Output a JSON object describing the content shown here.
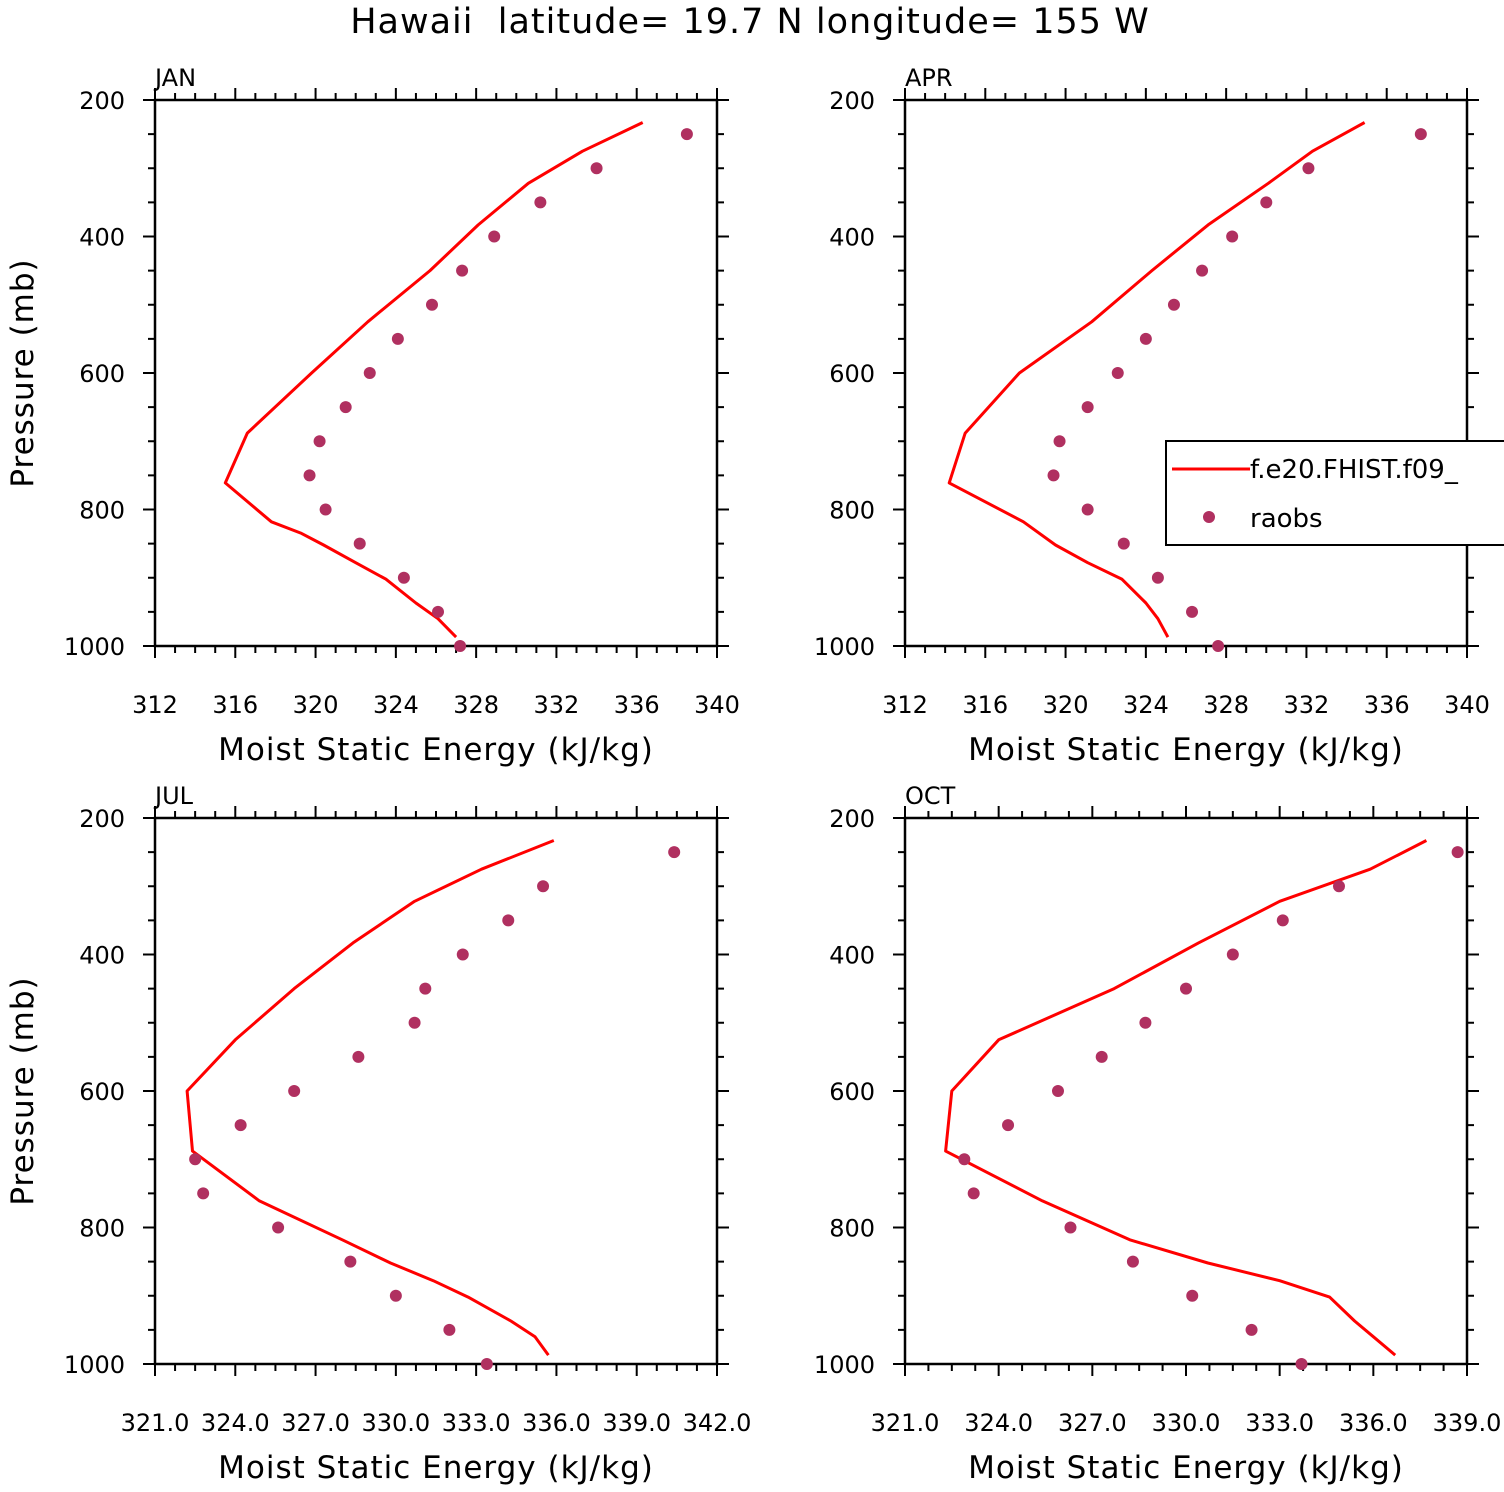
{
  "figure_title": "Hawaii  latitude= 19.7 N longitude= 155 W",
  "colors": {
    "model_line": "#ff0000",
    "raobs_marker": "#b03060",
    "axis": "#000000"
  },
  "chart_data": [
    {
      "type": "line",
      "title": "JAN",
      "xlabel": "Moist Static Energy (kJ/kg)",
      "ylabel": "Pressure (mb)",
      "xlim": [
        312,
        340
      ],
      "ylim": [
        1000,
        200
      ],
      "y_inverted": true,
      "xtick_values": [
        312,
        316,
        320,
        324,
        328,
        332,
        336,
        340
      ],
      "xtick_labels": [
        "312",
        "316",
        "320",
        "324",
        "328",
        "332",
        "336",
        "340"
      ],
      "ytick_values": [
        200,
        400,
        600,
        800,
        1000
      ],
      "ytick_labels": [
        "200",
        "400",
        "600",
        "800",
        "1000"
      ],
      "series": [
        {
          "name": "f.e20.FHIST.f09_",
          "kind": "line",
          "x": [
            327.0,
            326.1,
            325.0,
            323.5,
            322.0,
            320.4,
            319.3,
            317.8,
            315.5,
            316.6,
            319.8,
            322.6,
            325.7,
            328.1,
            330.6,
            333.3,
            336.3
          ],
          "y": [
            987,
            960,
            937,
            902,
            878,
            852,
            835,
            818,
            761,
            688,
            600,
            525,
            450,
            383,
            322,
            275,
            233
          ]
        },
        {
          "name": "raobs",
          "kind": "scatter",
          "x": [
            327.2,
            326.1,
            324.4,
            322.2,
            320.5,
            319.7,
            320.2,
            321.5,
            322.7,
            324.1,
            325.8,
            327.3,
            328.9,
            331.2,
            334.0,
            338.5
          ],
          "y": [
            1000,
            950,
            900,
            850,
            800,
            750,
            700,
            650,
            600,
            550,
            500,
            450,
            400,
            350,
            300,
            250
          ]
        }
      ]
    },
    {
      "type": "line",
      "title": "APR",
      "xlabel": "Moist Static Energy (kJ/kg)",
      "ylabel": "",
      "xlim": [
        312,
        340
      ],
      "ylim": [
        1000,
        200
      ],
      "y_inverted": true,
      "xtick_values": [
        312,
        316,
        320,
        324,
        328,
        332,
        336,
        340
      ],
      "xtick_labels": [
        "312",
        "316",
        "320",
        "324",
        "328",
        "332",
        "336",
        "340"
      ],
      "ytick_values": [
        200,
        400,
        600,
        800,
        1000
      ],
      "ytick_labels": [
        "200",
        "400",
        "600",
        "800",
        "1000"
      ],
      "legend": {
        "placement": "right",
        "entries": [
          "f.e20.FHIST.f09_",
          "raobs"
        ]
      },
      "series": [
        {
          "name": "f.e20.FHIST.f09_",
          "kind": "line",
          "x": [
            325.1,
            324.6,
            324.0,
            322.8,
            321.1,
            319.5,
            317.9,
            314.2,
            315.0,
            317.7,
            321.3,
            324.3,
            327.1,
            330.1,
            332.3,
            334.9
          ],
          "y": [
            987,
            960,
            937,
            902,
            878,
            852,
            818,
            761,
            688,
            600,
            525,
            450,
            383,
            322,
            275,
            233
          ]
        },
        {
          "name": "raobs",
          "kind": "scatter",
          "x": [
            327.6,
            326.3,
            324.6,
            322.9,
            321.1,
            319.4,
            319.7,
            321.1,
            322.6,
            324.0,
            325.4,
            326.8,
            328.3,
            330.0,
            332.1,
            337.7
          ],
          "y": [
            1000,
            950,
            900,
            850,
            800,
            750,
            700,
            650,
            600,
            550,
            500,
            450,
            400,
            350,
            300,
            250
          ]
        }
      ]
    },
    {
      "type": "line",
      "title": "JUL",
      "xlabel": "Moist Static Energy (kJ/kg)",
      "ylabel": "Pressure (mb)",
      "xlim": [
        321.0,
        342.0
      ],
      "ylim": [
        1000,
        200
      ],
      "y_inverted": true,
      "xtick_values": [
        321.0,
        324.0,
        327.0,
        330.0,
        333.0,
        336.0,
        339.0,
        342.0
      ],
      "xtick_labels": [
        "321.0",
        "324.0",
        "327.0",
        "330.0",
        "333.0",
        "336.0",
        "339.0",
        "342.0"
      ],
      "ytick_values": [
        200,
        400,
        600,
        800,
        1000
      ],
      "ytick_labels": [
        "200",
        "400",
        "600",
        "800",
        "1000"
      ],
      "series": [
        {
          "name": "f.e20.FHIST.f09_",
          "kind": "line",
          "x": [
            335.7,
            335.2,
            334.3,
            332.7,
            331.4,
            329.8,
            328.0,
            324.9,
            322.4,
            322.2,
            324.0,
            326.2,
            328.4,
            330.7,
            333.2,
            335.9
          ],
          "y": [
            987,
            960,
            937,
            902,
            878,
            852,
            818,
            761,
            688,
            600,
            525,
            450,
            383,
            322,
            275,
            233
          ]
        },
        {
          "name": "raobs",
          "kind": "scatter",
          "x": [
            333.4,
            332.0,
            330.0,
            328.3,
            325.6,
            322.8,
            322.5,
            324.2,
            326.2,
            328.6,
            330.7,
            331.1,
            332.5,
            334.2,
            335.5,
            340.4
          ],
          "y": [
            1000,
            950,
            900,
            850,
            800,
            750,
            700,
            650,
            600,
            550,
            500,
            450,
            400,
            350,
            300,
            250
          ]
        }
      ]
    },
    {
      "type": "line",
      "title": "OCT",
      "xlabel": "Moist Static Energy (kJ/kg)",
      "ylabel": "",
      "xlim": [
        321.0,
        339.0
      ],
      "ylim": [
        1000,
        200
      ],
      "y_inverted": true,
      "xtick_values": [
        321.0,
        324.0,
        327.0,
        330.0,
        333.0,
        336.0,
        339.0
      ],
      "xtick_labels": [
        "321.0",
        "324.0",
        "327.0",
        "330.0",
        "333.0",
        "336.0",
        "339.0"
      ],
      "ytick_values": [
        200,
        400,
        600,
        800,
        1000
      ],
      "ytick_labels": [
        "200",
        "400",
        "600",
        "800",
        "1000"
      ],
      "series": [
        {
          "name": "f.e20.FHIST.f09_",
          "kind": "line",
          "x": [
            336.7,
            336.0,
            335.4,
            334.6,
            333.0,
            330.7,
            328.2,
            325.4,
            322.3,
            322.5,
            324.0,
            327.7,
            330.4,
            333.0,
            335.9,
            337.7
          ],
          "y": [
            987,
            960,
            937,
            902,
            878,
            852,
            818,
            761,
            688,
            600,
            525,
            450,
            383,
            322,
            275,
            233
          ]
        },
        {
          "name": "raobs",
          "kind": "scatter",
          "x": [
            333.7,
            332.1,
            330.2,
            328.3,
            326.3,
            323.2,
            322.9,
            324.3,
            325.9,
            327.3,
            328.7,
            330.0,
            331.5,
            333.1,
            334.9,
            338.7
          ],
          "y": [
            1000,
            950,
            900,
            850,
            800,
            750,
            700,
            650,
            600,
            550,
            500,
            450,
            400,
            350,
            300,
            250
          ]
        }
      ]
    }
  ]
}
